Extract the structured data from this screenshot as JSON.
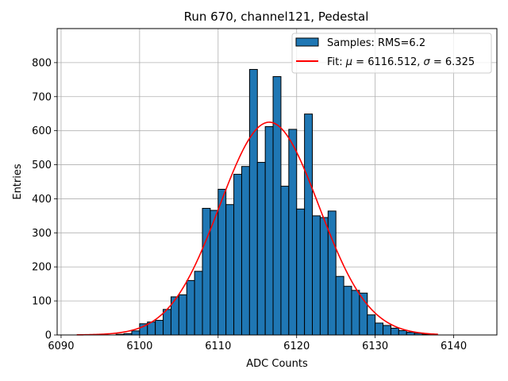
{
  "chart_data": {
    "type": "bar",
    "title": "Run 670, channel121, Pedestal",
    "xlabel": "ADC Counts",
    "ylabel": "Entries",
    "xlim": [
      6089.5,
      6145.5
    ],
    "ylim": [
      0,
      900
    ],
    "xticks": [
      6090,
      6100,
      6110,
      6120,
      6130,
      6140
    ],
    "yticks": [
      0,
      100,
      200,
      300,
      400,
      500,
      600,
      700,
      800
    ],
    "grid": true,
    "legend_position": "top-right",
    "bar_color": "#1f77b4",
    "fit_color": "#ff0000",
    "histogram": {
      "name": "Samples: RMS=6.2",
      "bin_width": 1,
      "bins": [
        {
          "x": 6097,
          "count": 2
        },
        {
          "x": 6098,
          "count": 4
        },
        {
          "x": 6099,
          "count": 12
        },
        {
          "x": 6100,
          "count": 33
        },
        {
          "x": 6101,
          "count": 38
        },
        {
          "x": 6102,
          "count": 43
        },
        {
          "x": 6103,
          "count": 75
        },
        {
          "x": 6104,
          "count": 112
        },
        {
          "x": 6105,
          "count": 118
        },
        {
          "x": 6106,
          "count": 160
        },
        {
          "x": 6107,
          "count": 187
        },
        {
          "x": 6108,
          "count": 372
        },
        {
          "x": 6109,
          "count": 366
        },
        {
          "x": 6110,
          "count": 428
        },
        {
          "x": 6111,
          "count": 383
        },
        {
          "x": 6112,
          "count": 472
        },
        {
          "x": 6113,
          "count": 495
        },
        {
          "x": 6114,
          "count": 780
        },
        {
          "x": 6115,
          "count": 507
        },
        {
          "x": 6116,
          "count": 612
        },
        {
          "x": 6117,
          "count": 759
        },
        {
          "x": 6118,
          "count": 437
        },
        {
          "x": 6119,
          "count": 604
        },
        {
          "x": 6120,
          "count": 370
        },
        {
          "x": 6121,
          "count": 649
        },
        {
          "x": 6122,
          "count": 350
        },
        {
          "x": 6123,
          "count": 345
        },
        {
          "x": 6124,
          "count": 364
        },
        {
          "x": 6125,
          "count": 172
        },
        {
          "x": 6126,
          "count": 143
        },
        {
          "x": 6127,
          "count": 131
        },
        {
          "x": 6128,
          "count": 123
        },
        {
          "x": 6129,
          "count": 59
        },
        {
          "x": 6130,
          "count": 35
        },
        {
          "x": 6131,
          "count": 28
        },
        {
          "x": 6132,
          "count": 20
        },
        {
          "x": 6133,
          "count": 13
        },
        {
          "x": 6134,
          "count": 8
        },
        {
          "x": 6135,
          "count": 5
        },
        {
          "x": 6136,
          "count": 2
        }
      ]
    },
    "fit": {
      "name": "Fit: μ = 6116.512, σ = 6.325",
      "name_prefix": "Fit: ",
      "mu_symbol": "μ",
      "mu_text": " = 6116.512, ",
      "sigma_symbol": "σ",
      "sigma_text": " = 6.325",
      "mu": 6116.512,
      "sigma": 6.325,
      "amplitude": 625,
      "x_range": [
        6092,
        6138
      ]
    }
  }
}
